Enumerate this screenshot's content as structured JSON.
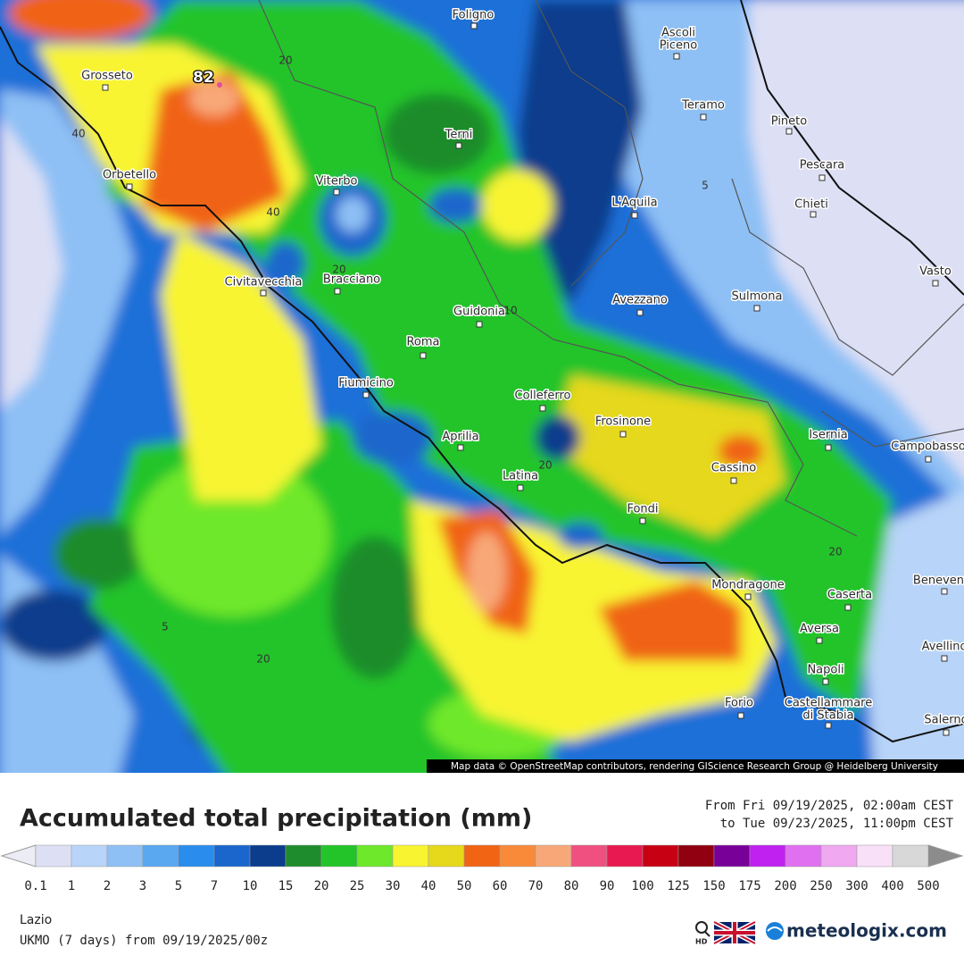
{
  "map": {
    "cities": [
      {
        "lines": [
          "Grosseto"
        ]
      },
      {
        "lines": [
          "Foligno"
        ]
      },
      {
        "lines": [
          "Ascoli",
          "Piceno"
        ]
      },
      {
        "lines": [
          "Teramo"
        ]
      },
      {
        "lines": [
          "Pineto"
        ]
      },
      {
        "lines": [
          "Pescara"
        ]
      },
      {
        "lines": [
          "Chieti"
        ]
      },
      {
        "lines": [
          "Vasto"
        ]
      },
      {
        "lines": [
          "Terni"
        ]
      },
      {
        "lines": [
          "Orbetello"
        ]
      },
      {
        "lines": [
          "Viterbo"
        ]
      },
      {
        "lines": [
          "L'Aquila"
        ]
      },
      {
        "lines": [
          "Civitavecchia"
        ]
      },
      {
        "lines": [
          "Bracciano"
        ]
      },
      {
        "lines": [
          "Avezzano"
        ]
      },
      {
        "lines": [
          "Sulmona"
        ]
      },
      {
        "lines": [
          "Guidonia"
        ]
      },
      {
        "lines": [
          "Roma"
        ]
      },
      {
        "lines": [
          "Fiumicino"
        ]
      },
      {
        "lines": [
          "Colleferro"
        ]
      },
      {
        "lines": [
          "Frosinone"
        ]
      },
      {
        "lines": [
          "Isernia"
        ]
      },
      {
        "lines": [
          "Campobasso"
        ]
      },
      {
        "lines": [
          "Aprilia"
        ]
      },
      {
        "lines": [
          "Cassino"
        ]
      },
      {
        "lines": [
          "Latina"
        ]
      },
      {
        "lines": [
          "Fondi"
        ]
      },
      {
        "lines": [
          "Mondragone"
        ]
      },
      {
        "lines": [
          "Caserta"
        ]
      },
      {
        "lines": [
          "Benevento"
        ]
      },
      {
        "lines": [
          "Aversa"
        ]
      },
      {
        "lines": [
          "Avellino"
        ]
      },
      {
        "lines": [
          "Napoli"
        ]
      },
      {
        "lines": [
          "Forio"
        ]
      },
      {
        "lines": [
          "Castellammare",
          "di Stabia"
        ]
      },
      {
        "lines": [
          "Salerno"
        ]
      }
    ],
    "contour_labels": [
      20,
      40,
      40,
      20,
      10,
      5,
      20,
      20,
      5,
      20
    ],
    "max_label": "82",
    "attribution": "Map data © OpenStreetMap contributors, rendering GIScience Research Group @ Heidelberg University"
  },
  "legend": {
    "title": "Accumulated total precipitation (mm)",
    "period": [
      "From Fri 09/19/2025, 02:00am CEST",
      "to Tue 09/23/2025, 11:00pm CEST"
    ],
    "ticks": [
      0.1,
      1,
      2,
      3,
      5,
      7,
      10,
      15,
      20,
      25,
      30,
      40,
      50,
      60,
      70,
      80,
      90,
      100,
      125,
      150,
      175,
      200,
      250,
      300,
      400,
      500
    ],
    "colors": [
      "#dde0f5",
      "#b8d4f8",
      "#8ec0f5",
      "#5aa8f0",
      "#2a8cec",
      "#1a66cc",
      "#0c3c8c",
      "#1e8c2c",
      "#22c42a",
      "#6ee82a",
      "#f8f430",
      "#e6d81a",
      "#f06414",
      "#f88a3a",
      "#f8a878",
      "#f05080",
      "#e81850",
      "#c80014",
      "#900010",
      "#780098",
      "#c020f0",
      "#e070f0",
      "#f0a8f0",
      "#f8e0f8",
      "#d8d8d8"
    ],
    "under_color": "#ececf4",
    "over_color": "#8c8c8c"
  },
  "footer": {
    "region": "Lazio",
    "model": "UKMO (7 days) from 09/19/2025/00z",
    "hd": "HD",
    "brand": "meteologix.com"
  }
}
